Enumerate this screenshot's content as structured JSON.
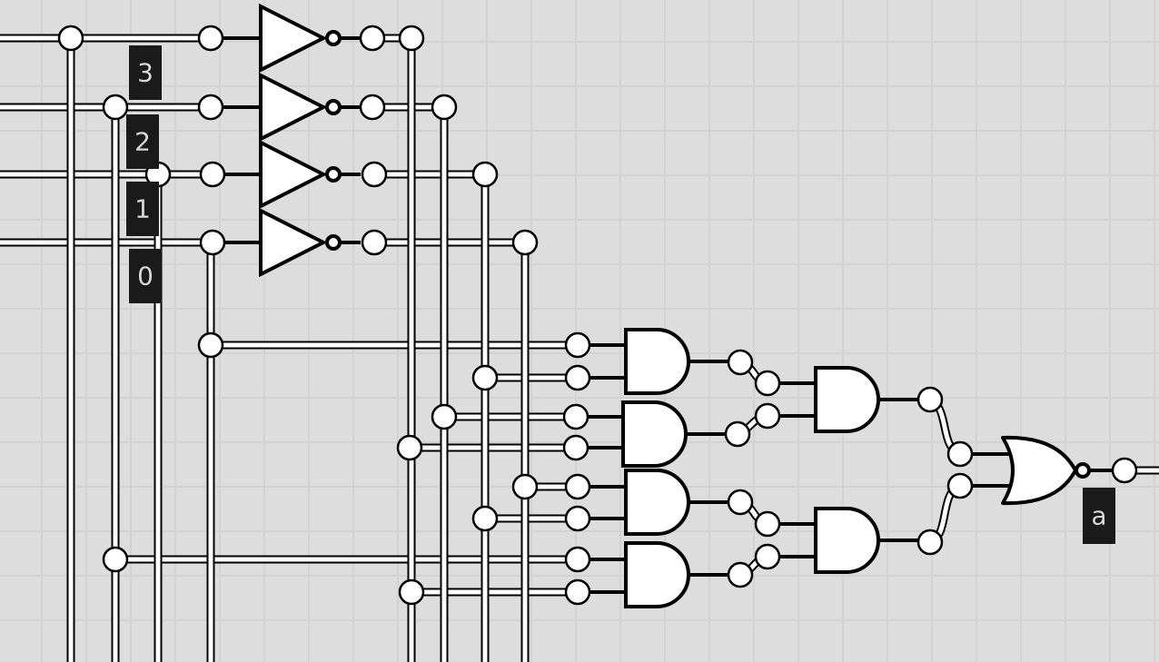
{
  "labels": {
    "bit3": "3",
    "bit2": "2",
    "bit1": "1",
    "bit0": "0",
    "output": "a"
  },
  "colors": {
    "background": "#dddddd",
    "wire_outline": "#000000",
    "wire_fill": "#ffffff",
    "label_bg": "#1a1a1a",
    "label_text": "#d8d8d8"
  }
}
